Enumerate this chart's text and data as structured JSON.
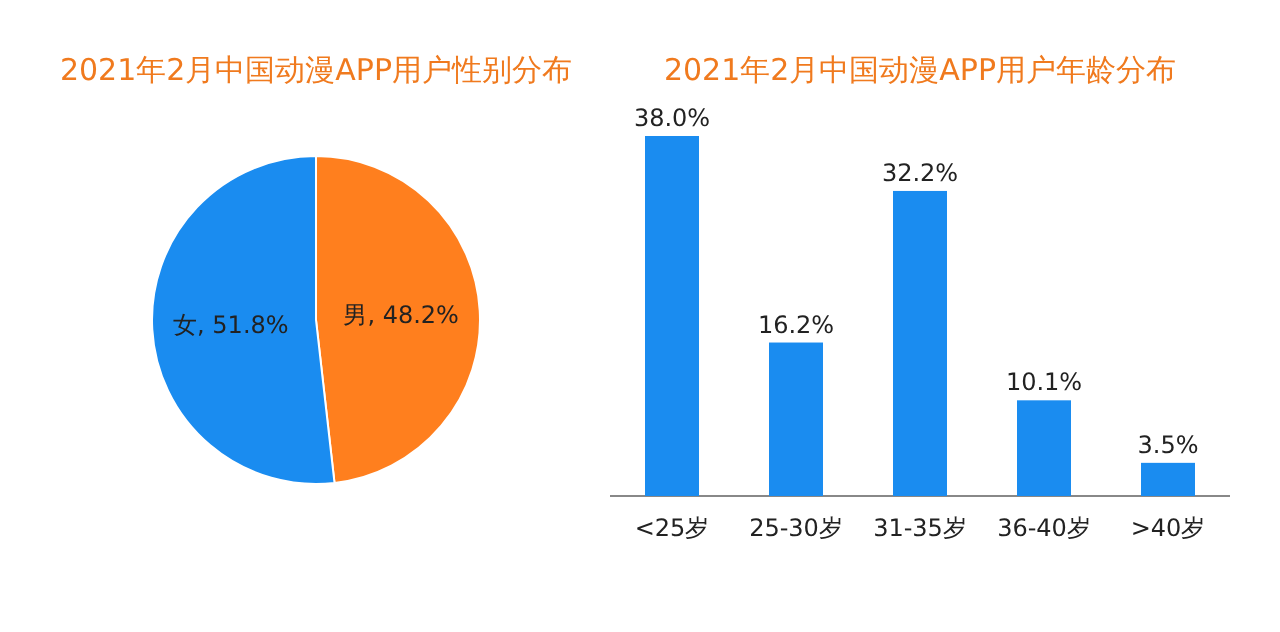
{
  "chart_data": [
    {
      "type": "pie",
      "title": "2021年2月中国动漫APP用户性别分布",
      "categories": [
        "男",
        "女"
      ],
      "values": [
        48.2,
        51.8
      ],
      "colors": [
        "#ff7f1e",
        "#1a8cf0"
      ],
      "value_labels": [
        "48.2%",
        "51.8%"
      ]
    },
    {
      "type": "bar",
      "title": "2021年2月中国动漫APP用户年龄分布",
      "categories": [
        "<25岁",
        "25-30岁",
        "31-35岁",
        "36-40岁",
        ">40岁"
      ],
      "values": [
        38.0,
        16.2,
        32.2,
        10.1,
        3.5
      ],
      "color": "#1a8cf0",
      "value_labels": [
        "38.0%",
        "16.2%",
        "32.2%",
        "10.1%",
        "3.5%"
      ]
    }
  ]
}
